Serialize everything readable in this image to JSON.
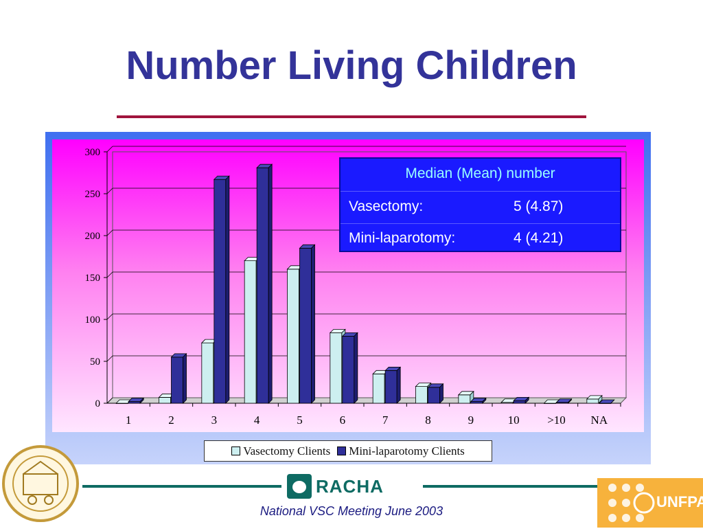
{
  "slide": {
    "title": "Number Living Children",
    "footer": "National VSC Meeting June 2003",
    "racha_logo": "RACHA",
    "unfpa_logo": "UNFPA"
  },
  "stats_box": {
    "heading": "Median (Mean) number",
    "rows": [
      {
        "label": "Vasectomy:",
        "value": "5 (4.87)"
      },
      {
        "label": "Mini-laparotomy:",
        "value": "4 (4.21)"
      }
    ]
  },
  "colors": {
    "vasectomy": "#cdeff0",
    "minilap": "#2f2f99"
  },
  "chart_data": {
    "type": "bar",
    "title": "",
    "xlabel": "",
    "ylabel": "",
    "categories": [
      "1",
      "2",
      "3",
      "4",
      "5",
      "6",
      "7",
      "8",
      "9",
      "10",
      ">10",
      "NA"
    ],
    "series": [
      {
        "name": "Vasectomy Clients",
        "values": [
          0,
          7,
          72,
          170,
          160,
          84,
          35,
          20,
          10,
          1,
          0,
          5
        ]
      },
      {
        "name": "Mini-laparotomy Clients",
        "values": [
          2,
          55,
          267,
          281,
          185,
          80,
          39,
          19,
          2,
          3,
          1,
          0
        ]
      }
    ],
    "ylim": [
      0,
      300
    ],
    "yticks": [
      "0",
      "50",
      "100",
      "150",
      "200",
      "250",
      "300"
    ],
    "grid": true,
    "legend_position": "bottom"
  }
}
